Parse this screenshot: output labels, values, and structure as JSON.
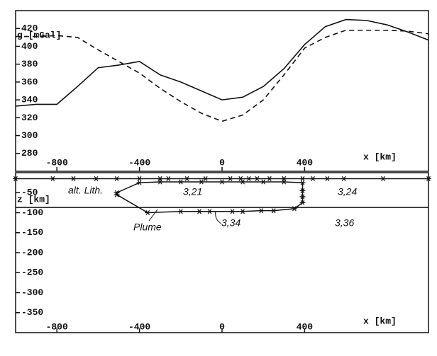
{
  "chart_data": [
    {
      "type": "line",
      "y_label": "g [mGal]",
      "x_label": "x [km]",
      "xlim": [
        -1000,
        1000
      ],
      "ylim": [
        260,
        440
      ],
      "xticks": [
        -800,
        -400,
        0,
        400
      ],
      "yticks": [
        280,
        300,
        320,
        340,
        360,
        380,
        400,
        420
      ],
      "x": [
        -1000,
        -900,
        -800,
        -700,
        -600,
        -500,
        -400,
        -300,
        -200,
        -100,
        0,
        100,
        200,
        300,
        400,
        500,
        600,
        700,
        800,
        900,
        1000
      ],
      "series": [
        {
          "color": "#111111",
          "dash": "solid",
          "values": [
            333,
            335,
            335,
            355,
            376,
            379,
            383,
            368,
            360,
            350,
            340,
            343,
            355,
            375,
            402,
            422,
            430,
            429,
            424,
            416,
            407
          ]
        },
        {
          "color": "#111111",
          "dash": "dashed",
          "values": [
            411,
            411,
            412,
            410,
            396,
            383,
            370,
            353,
            338,
            325,
            316,
            323,
            340,
            368,
            398,
            410,
            418,
            418,
            418,
            417,
            414
          ]
        }
      ]
    },
    {
      "type": "section",
      "y_label": "z [km]",
      "x_label": "x [km]",
      "xlim": [
        -1000,
        1000
      ],
      "ylim": [
        -400,
        0
      ],
      "xticks": [
        -800,
        -400,
        0,
        400
      ],
      "yticks": [
        -50,
        -100,
        -150,
        -200,
        -250,
        -300,
        -350
      ],
      "boundaries": [
        {
          "closed": false,
          "markers": true,
          "x": [
            -1000,
            -820,
            -720,
            -610,
            -510,
            -400,
            -300,
            -260,
            -170,
            -80,
            40,
            90,
            130,
            170,
            230,
            300,
            390,
            440,
            510,
            590,
            780,
            1000
          ],
          "z": [
            -15,
            -15,
            -15,
            -15,
            -15,
            -15,
            -15,
            -15,
            -15,
            -15,
            -15,
            -15,
            -15,
            -15,
            -15,
            -15,
            -15,
            -15,
            -15,
            -15,
            -15,
            -15
          ]
        },
        {
          "closed": false,
          "markers": false,
          "x": [
            -1000,
            1000
          ],
          "z": [
            -87,
            -87
          ]
        },
        {
          "closed": true,
          "markers": true,
          "x": [
            -510,
            -400,
            -300,
            -200,
            -100,
            0,
            100,
            200,
            300,
            390,
            390,
            390,
            390,
            350,
            250,
            190,
            100,
            50,
            -60,
            -110,
            -200,
            -360,
            -510
          ],
          "z": [
            -50,
            -25,
            -23,
            -23,
            -23,
            -23,
            -23,
            -23,
            -23,
            -25,
            -45,
            -60,
            -75,
            -90,
            -95,
            -95,
            -97,
            -97,
            -97,
            -97,
            -97,
            -100,
            -55
          ]
        }
      ],
      "annotations": [
        "alt. Lith.",
        "3,21",
        "3,24",
        "Plume",
        "3,34",
        "3,36"
      ]
    }
  ]
}
